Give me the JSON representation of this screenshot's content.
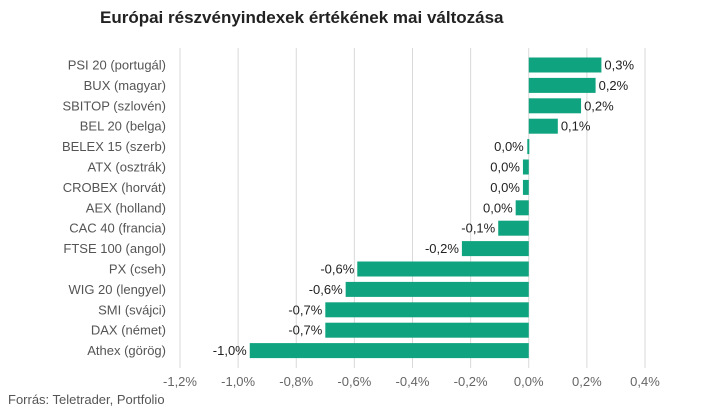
{
  "chart_data": {
    "type": "bar",
    "orientation": "horizontal",
    "title": "Európai részvényindexek értékének mai változása",
    "categories": [
      "PSI 20 (portugál)",
      "BUX (magyar)",
      "SBITOP (szlovén)",
      "BEL 20 (belga)",
      "BELEX 15 (szerb)",
      "ATX (osztrák)",
      "CROBEX (horvát)",
      "AEX (holland)",
      "CAC 40 (francia)",
      "FTSE 100 (angol)",
      "PX (cseh)",
      "WIG 20 (lengyel)",
      "SMI (svájci)",
      "DAX (német)",
      "Athex (görög)"
    ],
    "values": [
      0.25,
      0.23,
      0.18,
      0.1,
      -0.005,
      -0.02,
      -0.02,
      -0.045,
      -0.105,
      -0.23,
      -0.59,
      -0.63,
      -0.7,
      -0.7,
      -0.96
    ],
    "data_labels": [
      "0,3%",
      "0,2%",
      "0,2%",
      "0,1%",
      "0,0%",
      "0,0%",
      "0,0%",
      "0,0%",
      "-0,1%",
      "-0,2%",
      "-0,6%",
      "-0,6%",
      "-0,7%",
      "-0,7%",
      "-1,0%"
    ],
    "xlim": [
      -1.2,
      0.4
    ],
    "xticks": [
      -1.2,
      -1.0,
      -0.8,
      -0.6,
      -0.4,
      -0.2,
      0.0,
      0.2,
      0.4
    ],
    "xtick_labels": [
      "-1,2%",
      "-1,0%",
      "-0,8%",
      "-0,6%",
      "-0,4%",
      "-0,2%",
      "0,0%",
      "0,2%",
      "0,4%"
    ],
    "grid": "vertical",
    "legend": "none",
    "bar_color": "#10a37f"
  },
  "source": "Forrás: Teletrader, Portfolio"
}
